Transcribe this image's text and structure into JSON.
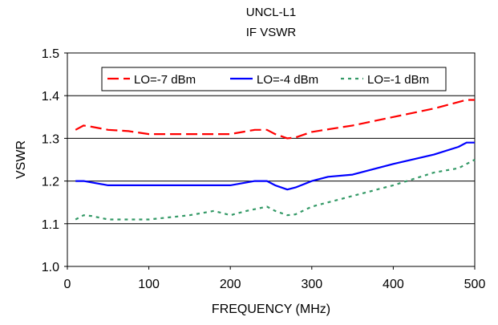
{
  "chart_data": {
    "type": "line",
    "title": "UNCL-L1",
    "subtitle": "IF VSWR",
    "xlabel": "FREQUENCY (MHz)",
    "ylabel": "VSWR",
    "xlim": [
      0,
      500
    ],
    "ylim": [
      1.0,
      1.5
    ],
    "x_ticks": [
      0,
      100,
      200,
      300,
      400,
      500
    ],
    "x_tick_labels": [
      "0",
      "100",
      "200",
      "300",
      "400",
      "500"
    ],
    "y_ticks": [
      1.0,
      1.1,
      1.2,
      1.3,
      1.4,
      1.5
    ],
    "y_tick_labels": [
      "1.0",
      "1.1",
      "1.2",
      "1.3",
      "1.4",
      "1.5"
    ],
    "grid": "horizontal",
    "legend_position": "top",
    "series": [
      {
        "name": "LO=-7 dBm",
        "color": "#ff0000",
        "dash": "dashed",
        "x": [
          10,
          20,
          30,
          50,
          75,
          100,
          150,
          200,
          230,
          245,
          255,
          270,
          280,
          300,
          350,
          400,
          450,
          490,
          500
        ],
        "y": [
          1.32,
          1.33,
          1.327,
          1.32,
          1.317,
          1.31,
          1.31,
          1.31,
          1.32,
          1.32,
          1.31,
          1.3,
          1.302,
          1.315,
          1.33,
          1.35,
          1.37,
          1.39,
          1.39
        ]
      },
      {
        "name": "LO=-4 dBm",
        "color": "#0000ff",
        "dash": "solid",
        "x": [
          10,
          20,
          50,
          100,
          150,
          200,
          230,
          245,
          255,
          270,
          280,
          300,
          320,
          350,
          400,
          450,
          480,
          490,
          500
        ],
        "y": [
          1.2,
          1.2,
          1.19,
          1.19,
          1.19,
          1.19,
          1.2,
          1.2,
          1.19,
          1.18,
          1.185,
          1.2,
          1.21,
          1.215,
          1.24,
          1.262,
          1.28,
          1.29,
          1.29
        ]
      },
      {
        "name": "LO=-1 dBm",
        "color": "#339966",
        "dash": "dotted",
        "x": [
          10,
          20,
          30,
          50,
          100,
          150,
          180,
          200,
          220,
          245,
          255,
          270,
          280,
          300,
          350,
          400,
          450,
          480,
          500
        ],
        "y": [
          1.11,
          1.12,
          1.118,
          1.11,
          1.11,
          1.12,
          1.13,
          1.12,
          1.13,
          1.14,
          1.13,
          1.12,
          1.122,
          1.14,
          1.165,
          1.19,
          1.22,
          1.23,
          1.25
        ]
      }
    ]
  }
}
